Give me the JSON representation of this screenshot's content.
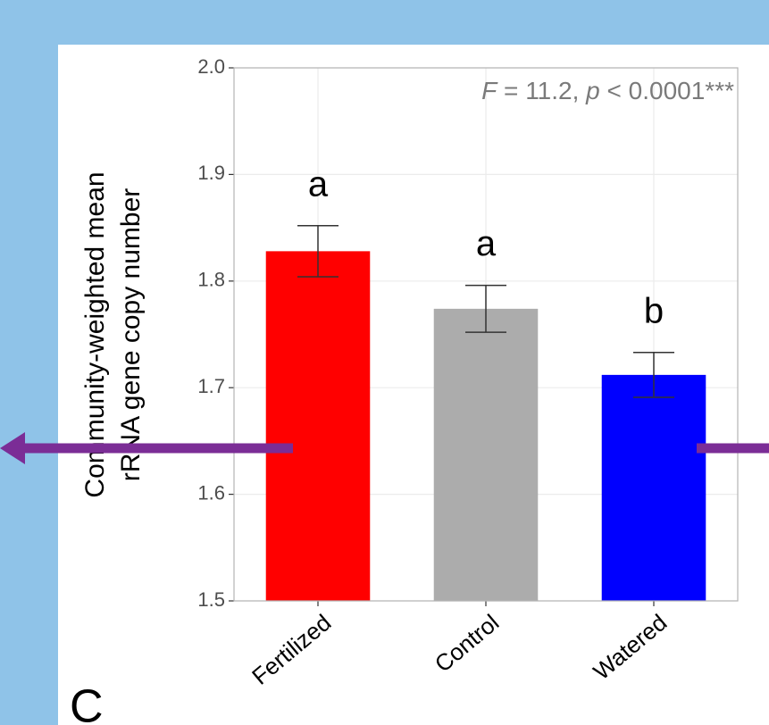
{
  "chart_data": {
    "type": "bar",
    "y_label": [
      "Community-weighted mean",
      "rRNA gene copy number"
    ],
    "annotation": [
      "F",
      " = 11.2, ",
      "p",
      " < 0.0001***"
    ],
    "panel_label": "C",
    "categories": [
      "Fertilized",
      "Control",
      "Watered"
    ],
    "values": [
      1.828,
      1.774,
      1.712
    ],
    "errors": [
      0.024,
      0.022,
      0.021
    ],
    "group_letters": [
      "a",
      "a",
      "b"
    ],
    "colors": [
      "#ff0000",
      "#acacac",
      "#0000ff"
    ],
    "ylim": [
      1.5,
      2.0
    ],
    "yticks": [
      {
        "value": 1.5,
        "label": "1.5"
      },
      {
        "value": 1.6,
        "label": "1.6"
      },
      {
        "value": 1.7,
        "label": "1.7"
      },
      {
        "value": 1.8,
        "label": "1.8"
      },
      {
        "value": 1.9,
        "label": "1.9"
      },
      {
        "value": 2.0,
        "label": "2.0"
      }
    ],
    "grid": true
  }
}
